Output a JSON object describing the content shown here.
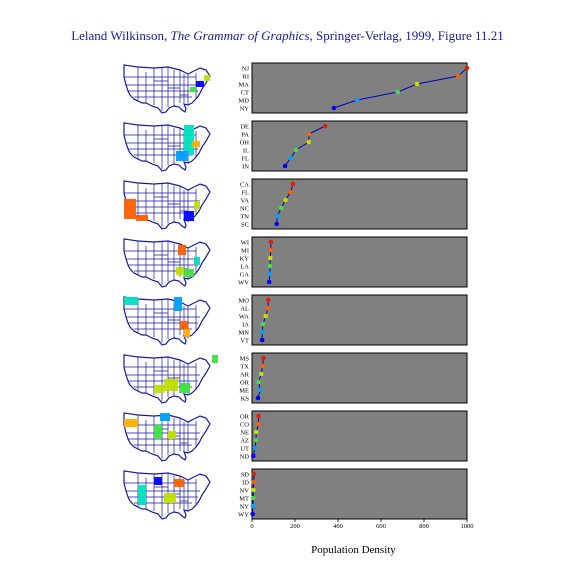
{
  "header": {
    "title_part1": "Leland Wilkinson, ",
    "title_italic": "The Grammar of Graphics",
    "title_part2": ", Springer-Verlag, 1999, Figure 11.21"
  },
  "colors": {
    "panel_bg": "#808080",
    "line": "#0000c0",
    "map_outline": "#1a1aa0",
    "palette": [
      "#0000ff",
      "#00a0ff",
      "#00e0c0",
      "#40e040",
      "#c0e000",
      "#ffb000",
      "#ff6000",
      "#e02000"
    ]
  },
  "chart_data": {
    "type": "line",
    "xlabel": "Population Density",
    "xlim": [
      0,
      1000
    ],
    "xticks": [
      0,
      200,
      400,
      600,
      800,
      1000
    ],
    "panels": [
      {
        "states": [
          "NJ",
          "RI",
          "MA",
          "CT",
          "MD",
          "NY"
        ],
        "values": [
          1042,
          960,
          767,
          678,
          489,
          381
        ]
      },
      {
        "states": [
          "DE",
          "PA",
          "OH",
          "IL",
          "FL",
          "IN"
        ],
        "values": [
          340,
          265,
          264,
          205,
          180,
          154
        ]
      },
      {
        "states": [
          "CA",
          "FL",
          "VA",
          "NC",
          "TN",
          "SC"
        ],
        "values": [
          190,
          180,
          156,
          136,
          118,
          115
        ]
      },
      {
        "states": [
          "WI",
          "MI",
          "KY",
          "LA",
          "GA",
          "WV"
        ],
        "values": [
          88,
          87,
          85,
          84,
          83,
          80
        ]
      },
      {
        "states": [
          "MO",
          "AL",
          "WA",
          "IA",
          "MN",
          "VT"
        ],
        "values": [
          76,
          74,
          64,
          51,
          48,
          47
        ]
      },
      {
        "states": [
          "MS",
          "TX",
          "AR",
          "OR",
          "ME",
          "KS"
        ],
        "values": [
          53,
          49,
          43,
          31,
          38,
          28
        ]
      },
      {
        "states": [
          "OR",
          "CO",
          "NE",
          "AZ",
          "UT",
          "ND"
        ],
        "values": [
          31,
          30,
          20,
          18,
          14,
          6
        ]
      },
      {
        "states": [
          "SD",
          "ID",
          "NV",
          "MT",
          "NY",
          "WY"
        ],
        "values": [
          9,
          8,
          7,
          5,
          4,
          3
        ]
      }
    ]
  }
}
